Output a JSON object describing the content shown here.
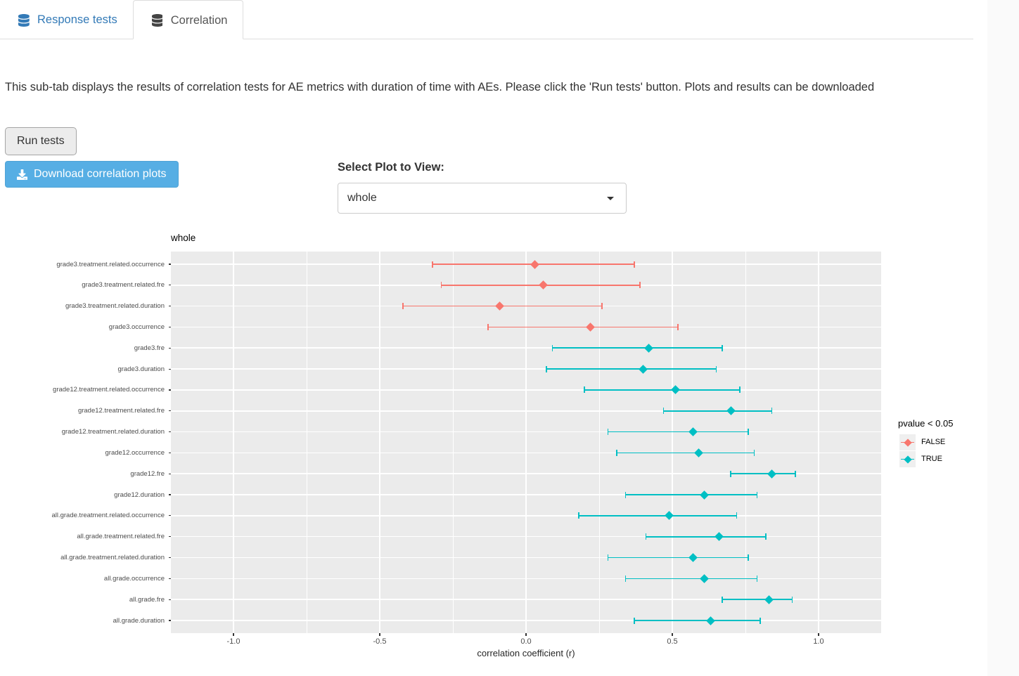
{
  "tabs": [
    {
      "label": "Response tests",
      "icon": "database-icon",
      "active": false
    },
    {
      "label": "Correlation",
      "icon": "database-icon",
      "active": true
    }
  ],
  "description": "This sub-tab displays the results of correlation tests for AE metrics with duration of time with AEs. Please click the 'Run tests' button. Plots and results can be downloaded",
  "buttons": {
    "run_tests": "Run tests",
    "download": "Download correlation plots"
  },
  "select_plot": {
    "label": "Select Plot to View:",
    "value": "whole"
  },
  "colors": {
    "tab_link": "#337ab7",
    "download_button_bg": "#56aee4",
    "panel_bg": "#EBEBEB",
    "false_series": "#F8766D",
    "true_series": "#00BFC4"
  },
  "chart_data": {
    "type": "scatter",
    "subtype": "forest-pointrange",
    "title": "whole",
    "xlabel": "correlation coefficient (r)",
    "ylabel": "",
    "xlim": [
      -1.214,
      1.214
    ],
    "x_ticks": [
      -1.0,
      -0.5,
      0.0,
      0.5,
      1.0
    ],
    "x_tick_labels": [
      "-1.0",
      "-0.5",
      "0.0",
      "0.5",
      "1.0"
    ],
    "grid": true,
    "panel_bg": "#EBEBEB",
    "legend": {
      "title": "pvalue < 0.05",
      "position": "right",
      "entries": [
        {
          "label": "FALSE",
          "color": "#F8766D"
        },
        {
          "label": "TRUE",
          "color": "#00BFC4"
        }
      ]
    },
    "rows": [
      {
        "label": "grade3.treatment.related.occurrence",
        "estimate": 0.03,
        "ci": [
          -0.32,
          0.37
        ],
        "significant": false
      },
      {
        "label": "grade3.treatment.related.fre",
        "estimate": 0.06,
        "ci": [
          -0.29,
          0.39
        ],
        "significant": false
      },
      {
        "label": "grade3.treatment.related.duration",
        "estimate": -0.09,
        "ci": [
          -0.42,
          0.26
        ],
        "significant": false
      },
      {
        "label": "grade3.occurrence",
        "estimate": 0.22,
        "ci": [
          -0.13,
          0.52
        ],
        "significant": false
      },
      {
        "label": "grade3.fre",
        "estimate": 0.42,
        "ci": [
          0.09,
          0.67
        ],
        "significant": true
      },
      {
        "label": "grade3.duration",
        "estimate": 0.4,
        "ci": [
          0.07,
          0.65
        ],
        "significant": true
      },
      {
        "label": "grade12.treatment.related.occurrence",
        "estimate": 0.51,
        "ci": [
          0.2,
          0.73
        ],
        "significant": true
      },
      {
        "label": "grade12.treatment.related.fre",
        "estimate": 0.7,
        "ci": [
          0.47,
          0.84
        ],
        "significant": true
      },
      {
        "label": "grade12.treatment.related.duration",
        "estimate": 0.57,
        "ci": [
          0.28,
          0.76
        ],
        "significant": true
      },
      {
        "label": "grade12.occurrence",
        "estimate": 0.59,
        "ci": [
          0.31,
          0.78
        ],
        "significant": true
      },
      {
        "label": "grade12.fre",
        "estimate": 0.84,
        "ci": [
          0.7,
          0.92
        ],
        "significant": true
      },
      {
        "label": "grade12.duration",
        "estimate": 0.61,
        "ci": [
          0.34,
          0.79
        ],
        "significant": true
      },
      {
        "label": "all.grade.treatment.related.occurrence",
        "estimate": 0.49,
        "ci": [
          0.18,
          0.72
        ],
        "significant": true
      },
      {
        "label": "all.grade.treatment.related.fre",
        "estimate": 0.66,
        "ci": [
          0.41,
          0.82
        ],
        "significant": true
      },
      {
        "label": "all.grade.treatment.related.duration",
        "estimate": 0.57,
        "ci": [
          0.28,
          0.76
        ],
        "significant": true
      },
      {
        "label": "all.grade.occurrence",
        "estimate": 0.61,
        "ci": [
          0.34,
          0.79
        ],
        "significant": true
      },
      {
        "label": "all.grade.fre",
        "estimate": 0.83,
        "ci": [
          0.67,
          0.91
        ],
        "significant": true
      },
      {
        "label": "all.grade.duration",
        "estimate": 0.63,
        "ci": [
          0.37,
          0.8
        ],
        "significant": true
      }
    ]
  }
}
